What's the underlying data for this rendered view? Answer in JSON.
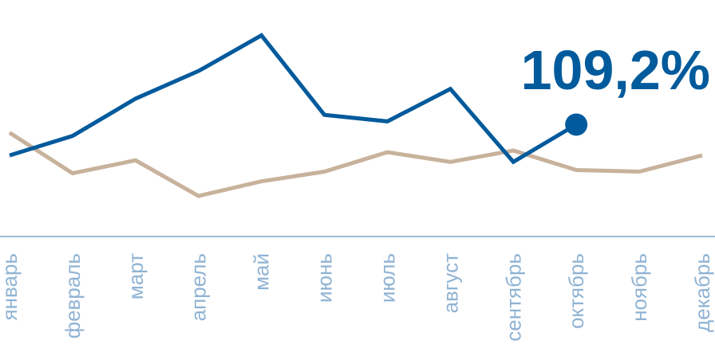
{
  "chart_data": {
    "type": "line",
    "categories": [
      "январь",
      "февраль",
      "март",
      "апрель",
      "май",
      "июнь",
      "июль",
      "август",
      "сентябрь",
      "октябрь",
      "ноябрь",
      "декабрь"
    ],
    "series": [
      {
        "values": [
          99.0,
          100.2,
          102.5,
          104.2,
          106.4,
          101.5,
          101.1,
          103.1,
          98.6,
          100.9,
          null,
          null
        ],
        "color": "#005a9c"
      },
      {
        "values": [
          100.4,
          97.9,
          98.7,
          96.5,
          97.4,
          98.0,
          99.2,
          98.6,
          99.3,
          98.1,
          98.0,
          99.0
        ],
        "color": "#c8b29c"
      }
    ],
    "annotation": {
      "text": "109,2%",
      "series": 0,
      "category": "октябрь",
      "color": "#005a9c"
    },
    "ylim": [
      94,
      107.5
    ],
    "xlabel": "",
    "ylabel": "",
    "axis_color": "#9dbcd8",
    "tick_label_color": "#8fb3d3",
    "grid": false,
    "legend": "none"
  }
}
